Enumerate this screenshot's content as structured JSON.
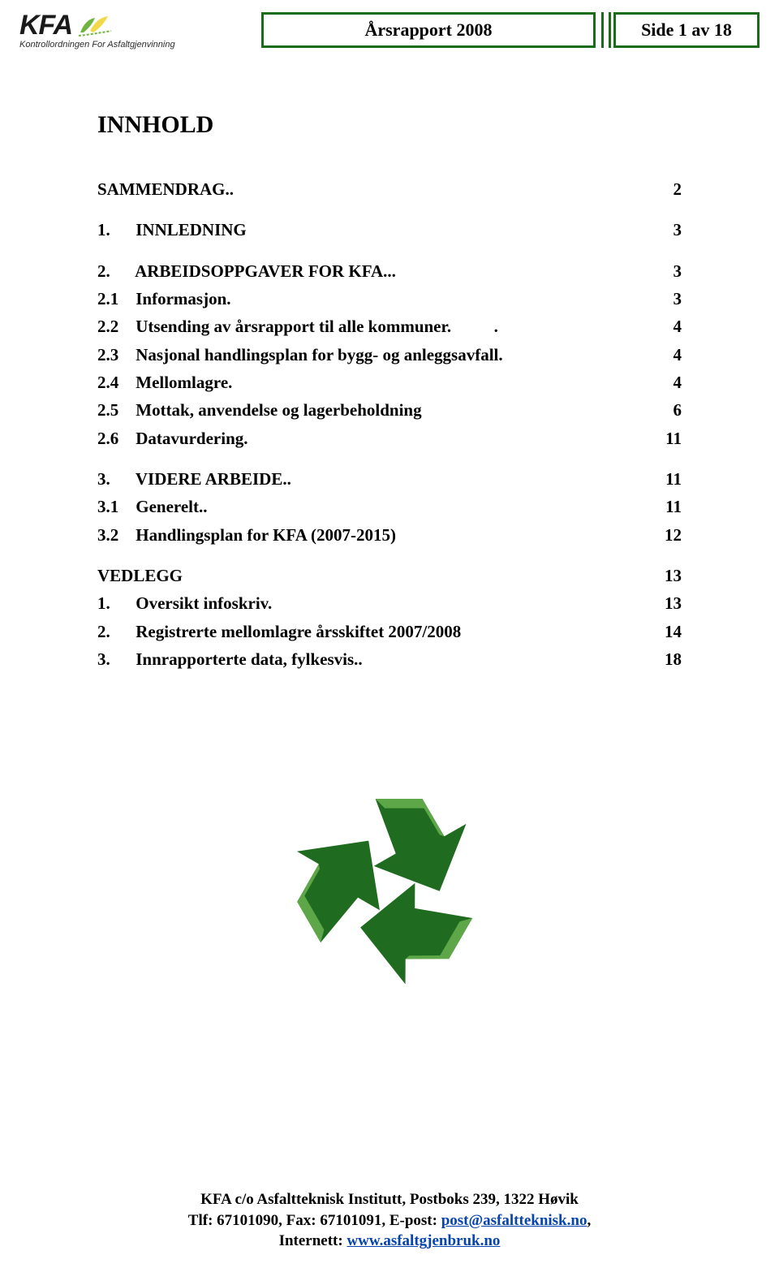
{
  "colors": {
    "header_border": "#1a6b1a",
    "link": "#0645ad",
    "logo_leaf_green": "#6eb43f",
    "logo_leaf_yellow": "#f2d94a",
    "recycle_dark": "#1f6b1f",
    "recycle_light": "#5ea748"
  },
  "header": {
    "logo_text": "KFA",
    "logo_subtitle": "Kontrollordningen For Asfaltgjenvinning",
    "title": "Årsrapport 2008",
    "page_label": "Side 1 av 18"
  },
  "content_title": "INNHOLD",
  "toc": [
    {
      "label": "SAMMENDRAG..",
      "page": "2",
      "gap_after": "md"
    },
    {
      "label": "1.      INNLEDNING",
      "page": "3",
      "gap_after": "md"
    },
    {
      "label": "2.      ARBEIDSOPPGAVER FOR KFA...",
      "page": "3",
      "gap_after": "sm"
    },
    {
      "label": "2.1    Informasjon.",
      "page": "3",
      "gap_after": "sm"
    },
    {
      "label": "2.2    Utsending av årsrapport til alle kommuner.          .",
      "page": "4",
      "gap_after": "sm"
    },
    {
      "label": "2.3    Nasjonal handlingsplan for bygg- og anleggsavfall.",
      "page": "4",
      "gap_after": "sm"
    },
    {
      "label": "2.4    Mellomlagre.",
      "page": "4",
      "gap_after": "sm"
    },
    {
      "label": "2.5    Mottak, anvendelse og lagerbeholdning",
      "page": "6",
      "gap_after": "sm"
    },
    {
      "label": "2.6    Datavurdering.",
      "page": "11",
      "gap_after": "md"
    },
    {
      "label": "3.      VIDERE ARBEIDE..",
      "page": "11",
      "gap_after": "sm"
    },
    {
      "label": "3.1    Generelt..",
      "page": "11",
      "gap_after": "sm"
    },
    {
      "label": "3.2    Handlingsplan for KFA (2007-2015)",
      "page": "12",
      "gap_after": "md"
    },
    {
      "label": "VEDLEGG",
      "page": "13",
      "gap_after": "sm"
    },
    {
      "label": "1.      Oversikt infoskriv.",
      "page": "13",
      "gap_after": "sm"
    },
    {
      "label": "2.      Registrerte mellomlagre årsskiftet 2007/2008",
      "page": "14",
      "gap_after": "sm"
    },
    {
      "label": "3.      Innrapporterte data, fylkesvis..",
      "page": "18",
      "gap_after": "none"
    }
  ],
  "footer": {
    "line1": "KFA c/o Asfaltteknisk Institutt, Postboks 239, 1322 Høvik",
    "line2_pre": "Tlf:  67101090, Fax: 67101091, E-post: ",
    "email": "post@asfaltteknisk.no",
    "line2_post": ",",
    "line3_pre": "Internett: ",
    "url": "www.asfaltgjenbruk.no"
  }
}
